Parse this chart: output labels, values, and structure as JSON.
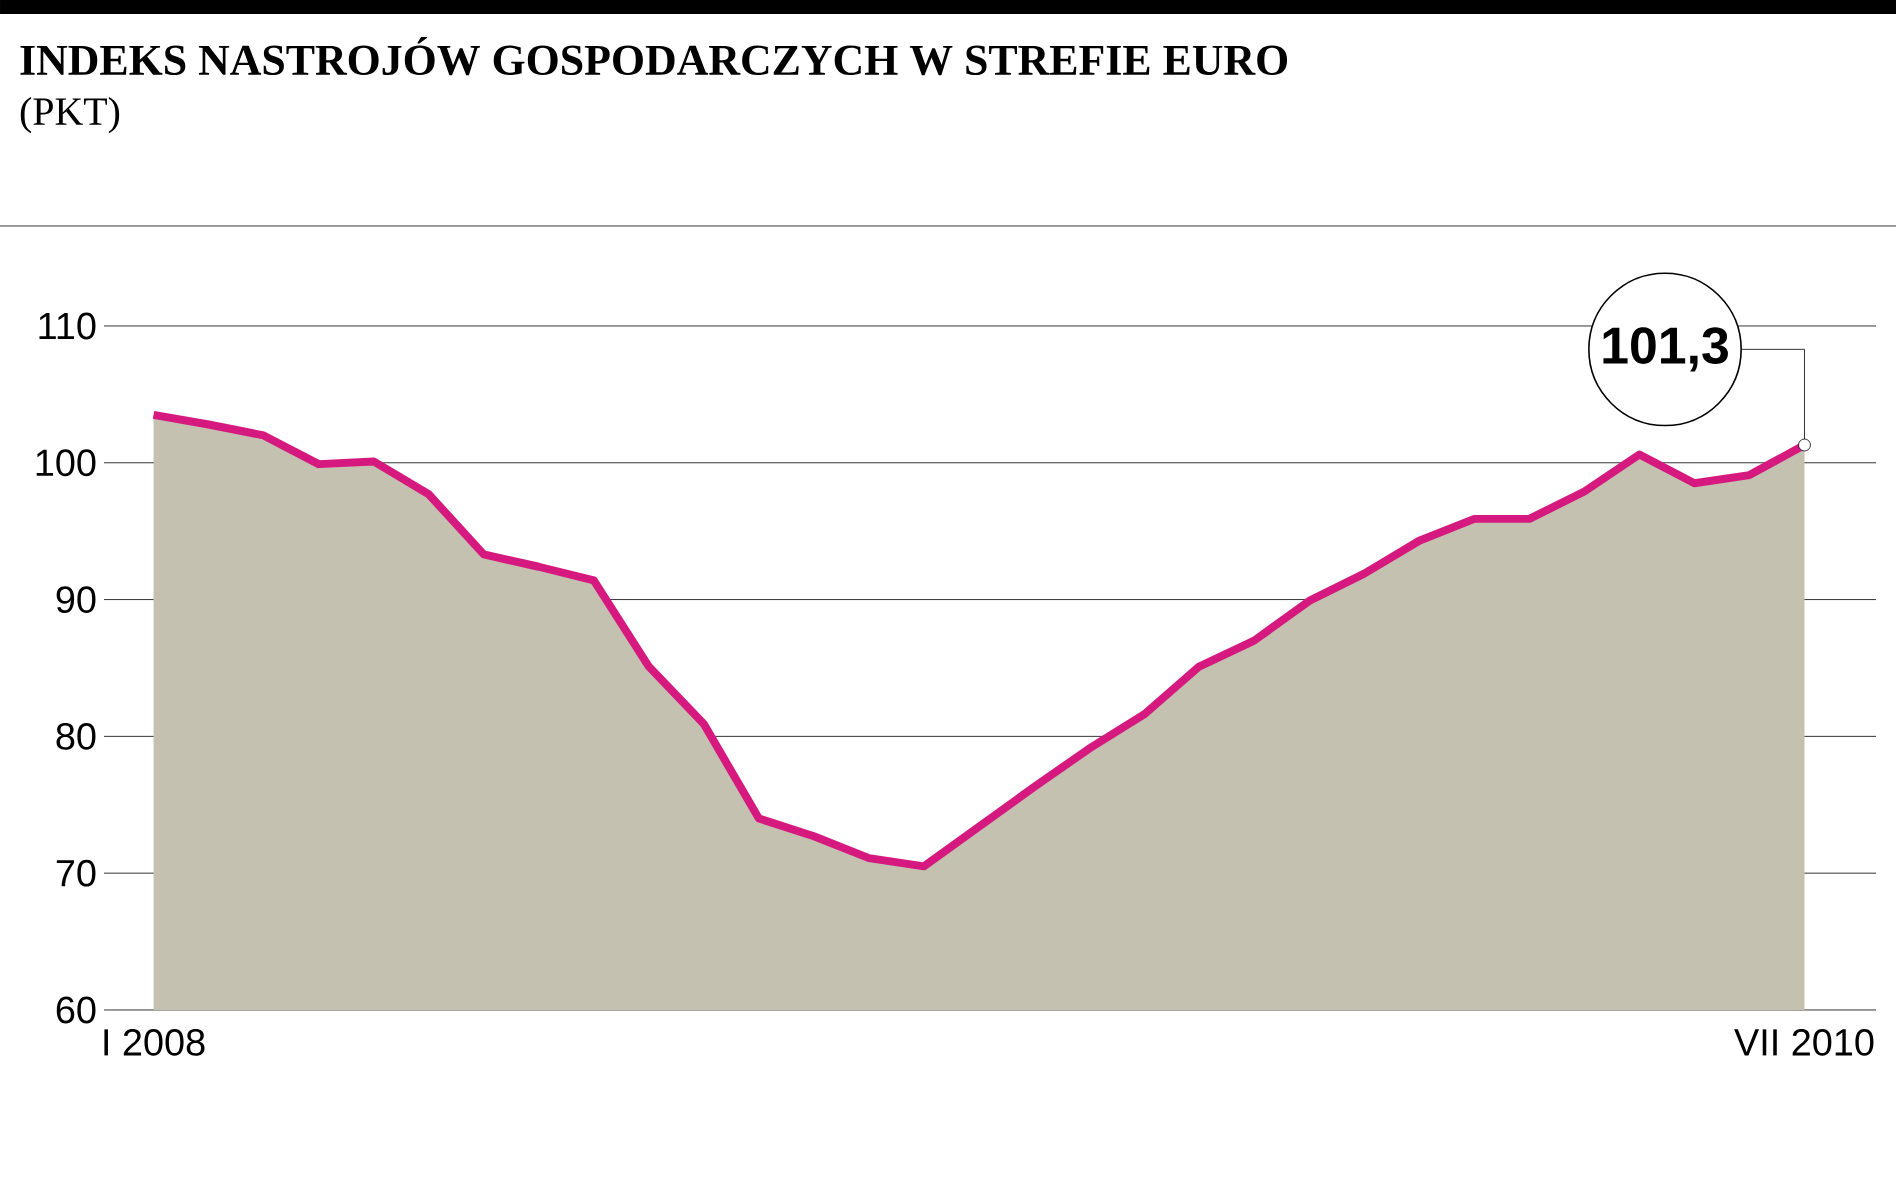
{
  "chart_data": {
    "type": "area",
    "title": "INDEKS NASTROJÓW GOSPODARCZYCH W STREFIE EURO",
    "subtitle": "(PKT)",
    "categories": [
      "I 2008",
      null,
      null,
      null,
      null,
      null,
      null,
      null,
      null,
      null,
      null,
      null,
      null,
      null,
      null,
      null,
      null,
      null,
      null,
      null,
      null,
      null,
      null,
      null,
      null,
      null,
      null,
      null,
      null,
      null,
      "VII 2010"
    ],
    "series": [
      {
        "color": "#d6197f",
        "values": [
          103.5,
          102.8,
          102.0,
          99.9,
          100.1,
          97.7,
          93.3,
          92.4,
          91.4,
          85.1,
          80.9,
          74.0,
          72.7,
          71.1,
          70.5,
          73.4,
          76.3,
          79.1,
          81.6,
          85.1,
          87.0,
          89.9,
          91.9,
          94.3,
          95.9,
          95.9,
          97.9,
          100.6,
          98.5,
          99.1,
          101.3
        ],
        "value_labels": [
          null,
          null,
          null,
          null,
          null,
          null,
          null,
          null,
          null,
          null,
          null,
          null,
          null,
          null,
          null,
          null,
          null,
          null,
          null,
          null,
          null,
          null,
          null,
          null,
          null,
          null,
          null,
          null,
          null,
          null,
          "101,3"
        ]
      }
    ],
    "ylim": [
      60,
      110
    ],
    "yticks": [
      60,
      70,
      80,
      90,
      100,
      110
    ],
    "grid": "y"
  }
}
